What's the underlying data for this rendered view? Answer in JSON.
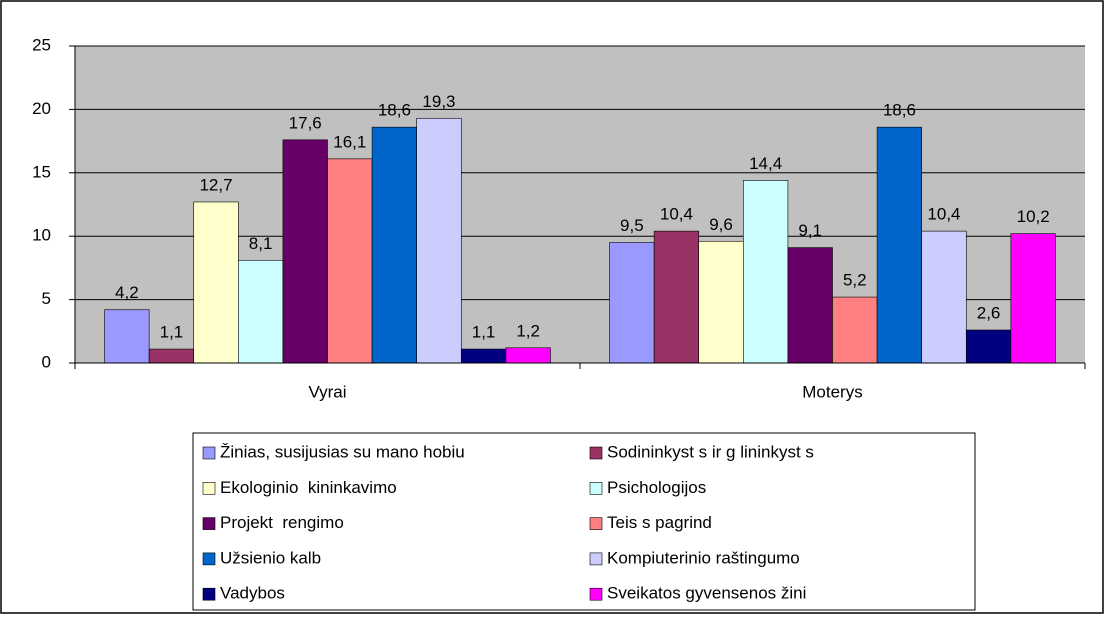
{
  "chart_data": {
    "type": "bar",
    "categories": [
      "Vyrai",
      "Moterys"
    ],
    "series": [
      {
        "name": "Žinias, susijusias su mano hobiu",
        "color": "#9999ff",
        "values": [
          4.2,
          9.5
        ],
        "value_labels": [
          "4,2",
          "9,5"
        ]
      },
      {
        "name": "Sodininkyst s ir g lininkyst s",
        "color": "#993366",
        "values": [
          1.1,
          10.4
        ],
        "value_labels": [
          "1,1",
          "10,4"
        ]
      },
      {
        "name": "Ekologinio  kininkavimo",
        "color": "#ffffcc",
        "values": [
          12.7,
          9.6
        ],
        "value_labels": [
          "12,7",
          "9,6"
        ]
      },
      {
        "name": "Psichologijos",
        "color": "#ccffff",
        "values": [
          8.1,
          14.4
        ],
        "value_labels": [
          "8,1",
          "14,4"
        ]
      },
      {
        "name": "Projekt  rengimo",
        "color": "#660066",
        "values": [
          17.6,
          9.1
        ],
        "value_labels": [
          "17,6",
          "9,1"
        ]
      },
      {
        "name": "Teis s pagrind",
        "color": "#ff8080",
        "values": [
          16.1,
          5.2
        ],
        "value_labels": [
          "16,1",
          "5,2"
        ]
      },
      {
        "name": "Užsienio kalb",
        "color": "#0066cc",
        "values": [
          18.6,
          18.6
        ],
        "value_labels": [
          "18,6",
          "18,6"
        ]
      },
      {
        "name": "Kompiuterinio raštingumo",
        "color": "#ccccff",
        "values": [
          19.3,
          10.4
        ],
        "value_labels": [
          "19,3",
          "10,4"
        ]
      },
      {
        "name": "Vadybos",
        "color": "#000080",
        "values": [
          1.1,
          2.6
        ],
        "value_labels": [
          "1,1",
          "2,6"
        ]
      },
      {
        "name": "Sveikatos gyvensenos žini",
        "color": "#ff00ff",
        "values": [
          1.2,
          10.2
        ],
        "value_labels": [
          "1,2",
          "10,2"
        ]
      }
    ],
    "ylim": [
      0,
      25
    ],
    "yticks": [
      0,
      5,
      10,
      15,
      20,
      25
    ],
    "grid": true,
    "legend": "bottom"
  }
}
